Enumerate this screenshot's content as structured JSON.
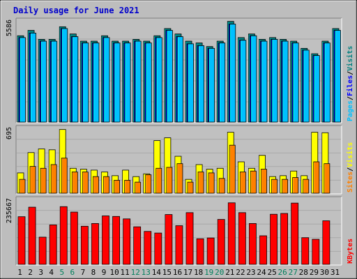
{
  "chart_data": {
    "type": "bar",
    "title": "Daily usage for June 2021",
    "categories": [
      "1",
      "2",
      "3",
      "4",
      "5",
      "6",
      "7",
      "8",
      "9",
      "10",
      "11",
      "12",
      "13",
      "14",
      "15",
      "16",
      "17",
      "18",
      "19",
      "20",
      "21",
      "22",
      "23",
      "24",
      "25",
      "26",
      "27",
      "28",
      "29",
      "30",
      "31"
    ],
    "weekend_days": [
      5,
      6,
      12,
      13,
      19,
      20,
      26,
      27
    ],
    "colors": {
      "title": "#0000cc",
      "hits": "#008080",
      "files": "#0000ff",
      "pages": "#00c0ff",
      "visits": "#ffff00",
      "sites": "#ff8000",
      "kbytes": "#ff0000",
      "weekend_label": "#00805c",
      "weekday_label": "#000000"
    },
    "panels": [
      {
        "id": "top",
        "max_label": "5586",
        "ymax": 5586,
        "legend": [
          {
            "text": "Pages",
            "color": "#00c0ff"
          },
          {
            "text": "Files",
            "color": "#0000ff"
          },
          {
            "text": "Visits",
            "color": "#008080"
          }
        ],
        "series": [
          {
            "name": "Hits",
            "color": "#008080",
            "values": [
              4800,
              5100,
              4600,
              4600,
              5300,
              4900,
              4500,
              4500,
              4800,
              4500,
              4500,
              4600,
              4500,
              4800,
              5200,
              4900,
              4500,
              4400,
              4200,
              4500,
              5600,
              4700,
              4900,
              4600,
              4700,
              4600,
              4500,
              4100,
              3800,
              4500,
              5200
            ]
          },
          {
            "name": "Files",
            "color": "#0000ff",
            "values": [
              4700,
              4950,
              4500,
              4500,
              5200,
              4750,
              4400,
              4400,
              4700,
              4400,
              4400,
              4500,
              4400,
              4700,
              5100,
              4750,
              4350,
              4250,
              4100,
              4400,
              5450,
              4550,
              4800,
              4500,
              4600,
              4500,
              4400,
              4000,
              3700,
              4400,
              5100
            ]
          },
          {
            "name": "Pages",
            "color": "#00c0ff",
            "values": [
              4700,
              4950,
              4500,
              4500,
              5200,
              4750,
              4400,
              4400,
              4700,
              4400,
              4400,
              4500,
              4400,
              4700,
              5100,
              4750,
              4350,
              4250,
              4100,
              4400,
              5450,
              4550,
              4800,
              4500,
              4600,
              4500,
              4400,
              4000,
              3700,
              4400,
              5100
            ]
          }
        ]
      },
      {
        "id": "middle",
        "max_label": "695",
        "ymax": 695,
        "legend": [
          {
            "text": "Sites",
            "color": "#ff8000"
          },
          {
            "text": "Visits",
            "color": "#ffff00"
          }
        ],
        "series": [
          {
            "name": "Visits",
            "color": "#ffff00",
            "values": [
              220,
              440,
              480,
              470,
              690,
              270,
              260,
              250,
              230,
              190,
              250,
              180,
              210,
              570,
              600,
              400,
              150,
              310,
              260,
              270,
              660,
              340,
              270,
              410,
              180,
              190,
              240,
              190,
              660,
              655
            ]
          },
          {
            "name": "Sites",
            "color": "#ff8000",
            "values": [
              150,
              290,
              270,
              310,
              380,
              230,
              230,
              180,
              180,
              140,
              140,
              120,
              200,
              270,
              280,
              320,
              120,
              230,
              220,
              160,
              520,
              230,
              240,
              260,
              150,
              150,
              170,
              150,
              340,
              320
            ]
          }
        ]
      },
      {
        "id": "bottom",
        "max_label": "235667",
        "ymax": 235667,
        "legend": [
          {
            "text": "KBytes",
            "color": "#ff0000"
          }
        ],
        "series": [
          {
            "name": "KBytes",
            "color": "#ff0000",
            "values": [
              175000,
              210000,
              100000,
              145000,
              212000,
              192000,
              140000,
              150000,
              178000,
              176000,
              167000,
              138000,
              121000,
              115000,
              183000,
              142000,
              190000,
              94000,
              97000,
              165000,
              226000,
              190000,
              150000,
              105000,
              184000,
              187000,
              225000,
              98000,
              92000,
              160000
            ]
          }
        ]
      }
    ]
  }
}
